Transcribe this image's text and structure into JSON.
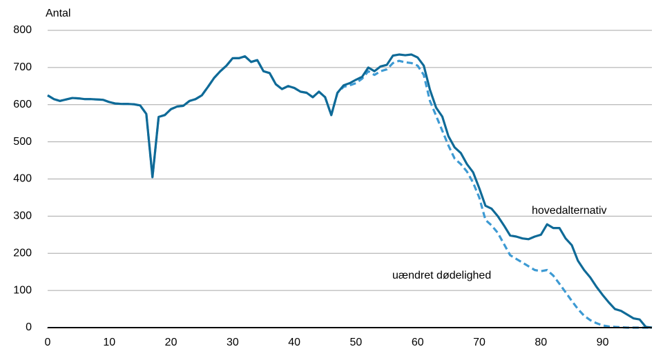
{
  "chart_data": {
    "type": "line",
    "y_label": "Antal",
    "x": [
      0,
      1,
      2,
      3,
      4,
      5,
      6,
      7,
      8,
      9,
      10,
      11,
      12,
      13,
      14,
      15,
      16,
      17,
      18,
      19,
      20,
      21,
      22,
      23,
      24,
      25,
      26,
      27,
      28,
      29,
      30,
      31,
      32,
      33,
      34,
      35,
      36,
      37,
      38,
      39,
      40,
      41,
      42,
      43,
      44,
      45,
      46,
      47,
      48,
      49,
      50,
      51,
      52,
      53,
      54,
      55,
      56,
      57,
      58,
      59,
      60,
      61,
      62,
      63,
      64,
      65,
      66,
      67,
      68,
      69,
      70,
      71,
      72,
      73,
      74,
      75,
      76,
      77,
      78,
      79,
      80,
      81,
      82,
      83,
      84,
      85,
      86,
      87,
      88,
      89,
      90,
      91,
      92,
      93,
      94,
      95,
      96,
      97,
      98
    ],
    "series": [
      {
        "name": "hovedalternativ",
        "color": "#0f6a97",
        "dash": false,
        "values": [
          625,
          615,
          610,
          614,
          618,
          617,
          615,
          615,
          614,
          613,
          607,
          603,
          602,
          602,
          601,
          598,
          575,
          405,
          567,
          572,
          588,
          595,
          597,
          610,
          615,
          625,
          648,
          672,
          690,
          705,
          725,
          725,
          730,
          715,
          720,
          690,
          685,
          655,
          642,
          650,
          645,
          635,
          632,
          620,
          635,
          620,
          572,
          632,
          652,
          658,
          667,
          675,
          700,
          690,
          703,
          707,
          732,
          735,
          733,
          735,
          727,
          705,
          640,
          592,
          568,
          515,
          485,
          470,
          440,
          418,
          375,
          328,
          320,
          300,
          275,
          248,
          245,
          240,
          238,
          245,
          250,
          278,
          268,
          268,
          240,
          222,
          180,
          155,
          135,
          110,
          88,
          68,
          50,
          45,
          35,
          25,
          22,
          2,
          0
        ]
      },
      {
        "name": "uændret dødelighed",
        "color": "#3d9ad3",
        "dash": true,
        "values": [
          625,
          615,
          610,
          614,
          618,
          617,
          615,
          615,
          614,
          613,
          607,
          603,
          602,
          602,
          601,
          598,
          575,
          405,
          567,
          572,
          588,
          595,
          597,
          610,
          615,
          625,
          648,
          672,
          690,
          705,
          725,
          725,
          730,
          715,
          720,
          690,
          685,
          655,
          642,
          650,
          645,
          635,
          632,
          620,
          635,
          620,
          572,
          632,
          648,
          652,
          658,
          670,
          690,
          680,
          690,
          695,
          712,
          718,
          714,
          712,
          705,
          680,
          610,
          570,
          530,
          490,
          455,
          440,
          420,
          390,
          350,
          290,
          275,
          255,
          225,
          195,
          185,
          175,
          165,
          155,
          152,
          155,
          140,
          118,
          95,
          72,
          50,
          32,
          20,
          12,
          6,
          3,
          2,
          1,
          0,
          0,
          0,
          0,
          0
        ]
      }
    ],
    "xlim": [
      0,
      98
    ],
    "xticks": [
      0,
      10,
      20,
      30,
      40,
      50,
      60,
      70,
      80,
      90
    ],
    "ylim": [
      0,
      800
    ],
    "yticks": [
      0,
      100,
      200,
      300,
      400,
      500,
      600,
      700,
      800
    ],
    "grid": true
  }
}
